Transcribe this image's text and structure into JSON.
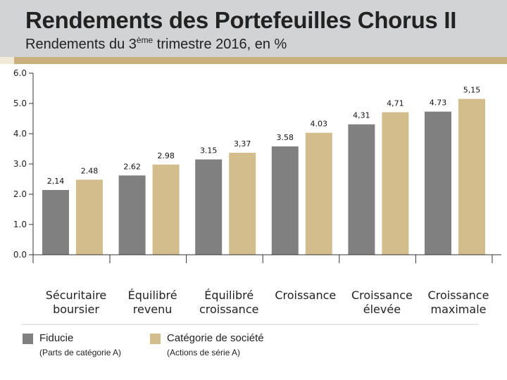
{
  "header": {
    "title": "Rendements des Portefeuilles Chorus II",
    "subtitle_before": "Rendements du 3",
    "subtitle_sup": "ème",
    "subtitle_after": " trimestre 2016, en %"
  },
  "colors": {
    "fiducie": "#808080",
    "societe": "#d3bd8c",
    "header_bg": "#d2d3d5",
    "accent": "#c9b07c"
  },
  "legend": {
    "fiducie_label": "Fiducie",
    "fiducie_note": "(Parts de catégorie A)",
    "societe_label": "Catégorie de société",
    "societe_note": "(Actions de série A)"
  },
  "chart_data": {
    "type": "bar",
    "title": "Rendements des Portefeuilles Chorus II",
    "subtitle": "Rendements du 3ème trimestre 2016, en %",
    "ylim": [
      0,
      6
    ],
    "yticks": [
      "0.0",
      "1.0",
      "2.0",
      "3.0",
      "4.0",
      "5.0",
      "6.0"
    ],
    "xlabel": "",
    "ylabel": "",
    "grid": false,
    "categories": [
      [
        "Sécuritaire",
        "boursier"
      ],
      [
        "Équilibré",
        "revenu"
      ],
      [
        "Équilibré",
        "croissance"
      ],
      [
        "Croissance"
      ],
      [
        "Croissance",
        "élevée"
      ],
      [
        "Croissance",
        "maximale"
      ]
    ],
    "series": [
      {
        "name": "Fiducie",
        "values": [
          2.14,
          2.62,
          3.15,
          3.58,
          4.31,
          4.73
        ],
        "labels": [
          "2,14",
          "2.62",
          "3.15",
          "3.58",
          "4,31",
          "4.73"
        ]
      },
      {
        "name": "Catégorie de société",
        "values": [
          2.48,
          2.98,
          3.37,
          4.03,
          4.71,
          5.15
        ],
        "labels": [
          "2.48",
          "2.98",
          "3,37",
          "4.03",
          "4,71",
          "5,15"
        ]
      }
    ]
  }
}
